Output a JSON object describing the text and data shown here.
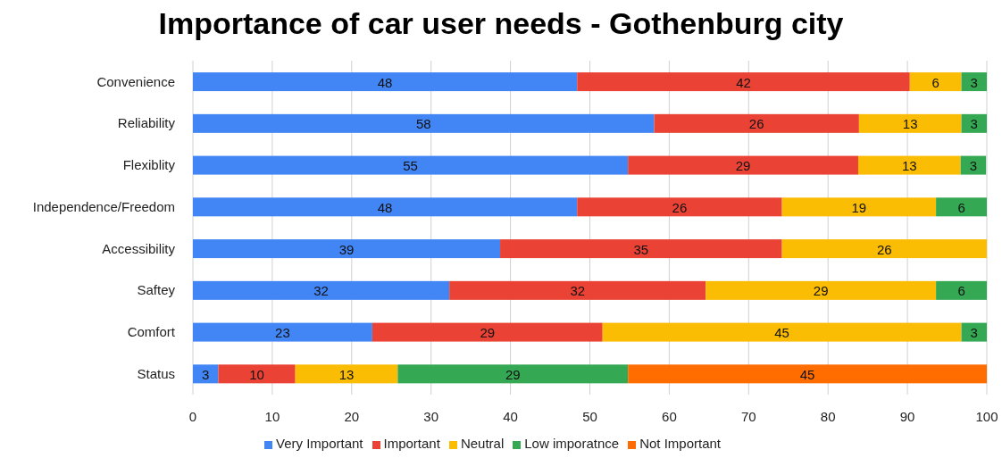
{
  "chart_data": {
    "type": "bar",
    "orientation": "horizontal",
    "stacked": true,
    "title": "Importance of car user needs - Gothenburg city",
    "categories": [
      "Convenience",
      "Reliability",
      "Flexiblity",
      "Independence/Freedom",
      "Accessibility",
      "Saftey",
      "Comfort",
      "Status"
    ],
    "series": [
      {
        "name": "Very Important",
        "color": "#4285f4",
        "values": [
          48.4,
          58.1,
          54.8,
          48.4,
          38.7,
          32.3,
          22.6,
          3.2
        ],
        "value_labels": [
          "48",
          "58",
          "55",
          "48",
          "39",
          "32",
          "23",
          "3"
        ]
      },
      {
        "name": "Important",
        "color": "#ea4335",
        "values": [
          41.9,
          25.8,
          29.0,
          25.8,
          35.5,
          32.3,
          29.0,
          9.7
        ],
        "value_labels": [
          "42",
          "26",
          "29",
          "26",
          "35",
          "32",
          "29",
          "10"
        ]
      },
      {
        "name": "Neutral",
        "color": "#fbbc04",
        "values": [
          6.5,
          12.9,
          12.9,
          19.4,
          25.8,
          29.0,
          45.2,
          12.9
        ],
        "value_labels": [
          "6",
          "13",
          "13",
          "19",
          "26",
          "29",
          "45",
          "13"
        ]
      },
      {
        "name": "Low imporatnce",
        "color": "#34a853",
        "values": [
          3.2,
          3.2,
          3.2,
          6.5,
          null,
          6.5,
          3.2,
          29.0
        ],
        "value_labels": [
          "3",
          "3",
          "3",
          "6",
          null,
          "6",
          "3",
          "29"
        ]
      },
      {
        "name": "Not Important",
        "color": "#ff6d01",
        "values": [
          null,
          null,
          null,
          null,
          null,
          null,
          null,
          45.2
        ],
        "value_labels": [
          null,
          null,
          null,
          null,
          null,
          null,
          null,
          "45"
        ]
      }
    ],
    "xlim": [
      0,
      100
    ],
    "xticks": [
      0,
      10,
      20,
      30,
      40,
      50,
      60,
      70,
      80,
      90,
      100
    ],
    "grid": "x",
    "legend": "bottom"
  }
}
